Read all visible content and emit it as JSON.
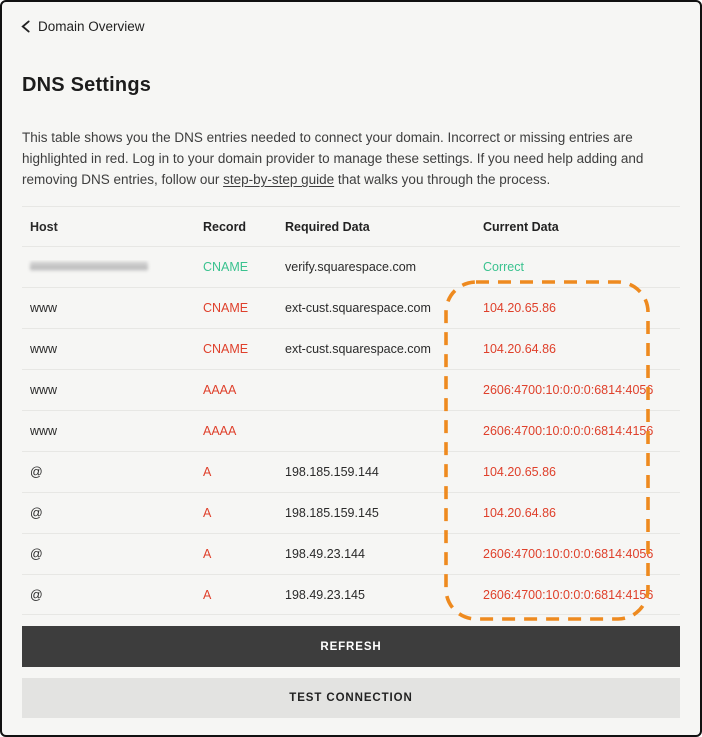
{
  "header": {
    "back_label": "Domain Overview"
  },
  "page": {
    "title": "DNS Settings",
    "description_before_link": "This table shows you the DNS entries needed to connect your domain. Incorrect or missing entries are highlighted in red. Log in to your domain provider to manage these settings. If you need help adding and removing DNS entries, follow our ",
    "description_link": "step-by-step guide",
    "description_after_link": " that walks you through the process."
  },
  "table": {
    "columns": {
      "host": "Host",
      "record": "Record",
      "required": "Required Data",
      "current": "Current Data"
    },
    "rows": [
      {
        "host": "",
        "host_redacted": true,
        "record": "CNAME",
        "required": "verify.squarespace.com",
        "current": "Correct",
        "status": "correct"
      },
      {
        "host": "www",
        "host_redacted": false,
        "record": "CNAME",
        "required": "ext-cust.squarespace.com",
        "current": "104.20.65.86",
        "status": "incorrect"
      },
      {
        "host": "www",
        "host_redacted": false,
        "record": "CNAME",
        "required": "ext-cust.squarespace.com",
        "current": "104.20.64.86",
        "status": "incorrect"
      },
      {
        "host": "www",
        "host_redacted": false,
        "record": "AAAA",
        "required": "",
        "current": "2606:4700:10:0:0:0:6814:4056",
        "status": "incorrect"
      },
      {
        "host": "www",
        "host_redacted": false,
        "record": "AAAA",
        "required": "",
        "current": "2606:4700:10:0:0:0:6814:4156",
        "status": "incorrect"
      },
      {
        "host": "@",
        "host_redacted": false,
        "record": "A",
        "required": "198.185.159.144",
        "current": "104.20.65.86",
        "status": "incorrect"
      },
      {
        "host": "@",
        "host_redacted": false,
        "record": "A",
        "required": "198.185.159.145",
        "current": "104.20.64.86",
        "status": "incorrect"
      },
      {
        "host": "@",
        "host_redacted": false,
        "record": "A",
        "required": "198.49.23.144",
        "current": "2606:4700:10:0:0:0:6814:4056",
        "status": "incorrect"
      },
      {
        "host": "@",
        "host_redacted": false,
        "record": "A",
        "required": "198.49.23.145",
        "current": "2606:4700:10:0:0:0:6814:4156",
        "status": "incorrect"
      }
    ]
  },
  "highlight": {
    "shape": "dashed-rounded-rectangle",
    "around": "current-data-values",
    "color": "#ee8a1f"
  },
  "buttons": {
    "refresh": "REFRESH",
    "test_connection": "TEST CONNECTION"
  },
  "colors": {
    "correct_green": "#3ac28f",
    "incorrect_red": "#df402b",
    "highlight_orange": "#ee8a1f",
    "refresh_button_bg": "#3d3d3d",
    "test_button_bg": "#e3e3e1",
    "page_background": "#f6f6f4"
  }
}
